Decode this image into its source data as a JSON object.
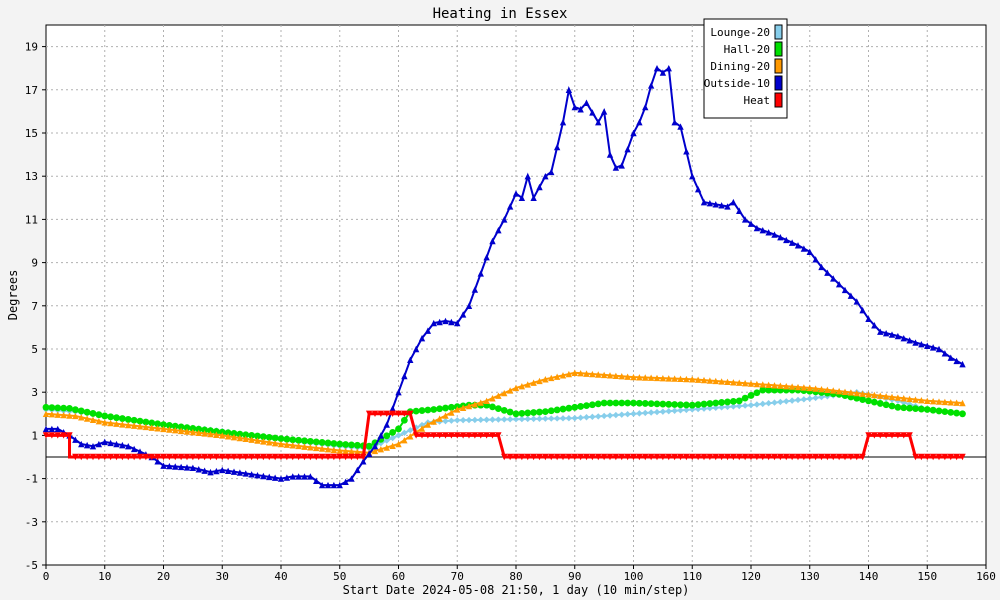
{
  "chart_data": {
    "type": "line",
    "title": "Heating in Essex",
    "xlabel": "Start Date 2024-05-08 21:50, 1 day (10 min/step)",
    "ylabel": "Degrees",
    "xlim": [
      0,
      160
    ],
    "ylim": [
      -5,
      20
    ],
    "xticks": [
      0,
      10,
      20,
      30,
      40,
      50,
      60,
      70,
      80,
      90,
      100,
      110,
      120,
      130,
      140,
      150,
      160
    ],
    "yticks": [
      -5,
      -3,
      -1,
      1,
      3,
      5,
      7,
      9,
      11,
      13,
      15,
      17,
      19
    ],
    "grid": true,
    "legend_position": "top-right",
    "series": [
      {
        "name": "Lounge-20",
        "color": "#87ceeb",
        "marker": "diamond",
        "points": [
          [
            0,
            2.2
          ],
          [
            5,
            2.1
          ],
          [
            10,
            1.9
          ],
          [
            20,
            1.5
          ],
          [
            30,
            1.2
          ],
          [
            40,
            0.8
          ],
          [
            50,
            0.5
          ],
          [
            55,
            0.4
          ],
          [
            60,
            1.0
          ],
          [
            65,
            1.6
          ],
          [
            70,
            1.7
          ],
          [
            80,
            1.75
          ],
          [
            90,
            1.8
          ],
          [
            100,
            2.0
          ],
          [
            110,
            2.2
          ],
          [
            120,
            2.4
          ],
          [
            130,
            2.7
          ],
          [
            138,
            3.0
          ],
          [
            145,
            2.6
          ],
          [
            150,
            2.2
          ],
          [
            156,
            2.0
          ]
        ]
      },
      {
        "name": "Hall-20",
        "color": "#00e000",
        "marker": "circle",
        "points": [
          [
            0,
            2.3
          ],
          [
            4,
            2.25
          ],
          [
            10,
            1.9
          ],
          [
            20,
            1.5
          ],
          [
            30,
            1.15
          ],
          [
            40,
            0.85
          ],
          [
            50,
            0.6
          ],
          [
            55,
            0.5
          ],
          [
            60,
            1.3
          ],
          [
            62,
            2.1
          ],
          [
            66,
            2.2
          ],
          [
            72,
            2.4
          ],
          [
            75,
            2.4
          ],
          [
            80,
            2.0
          ],
          [
            85,
            2.1
          ],
          [
            90,
            2.3
          ],
          [
            95,
            2.5
          ],
          [
            100,
            2.5
          ],
          [
            110,
            2.4
          ],
          [
            118,
            2.6
          ],
          [
            122,
            3.1
          ],
          [
            128,
            3.1
          ],
          [
            135,
            2.9
          ],
          [
            140,
            2.6
          ],
          [
            145,
            2.3
          ],
          [
            150,
            2.2
          ],
          [
            156,
            2.0
          ]
        ]
      },
      {
        "name": "Dining-20",
        "color": "#ff9900",
        "marker": "triangle",
        "points": [
          [
            0,
            2.0
          ],
          [
            5,
            1.9
          ],
          [
            10,
            1.6
          ],
          [
            20,
            1.3
          ],
          [
            30,
            1.0
          ],
          [
            40,
            0.6
          ],
          [
            50,
            0.3
          ],
          [
            55,
            0.2
          ],
          [
            60,
            0.6
          ],
          [
            65,
            1.5
          ],
          [
            70,
            2.2
          ],
          [
            75,
            2.6
          ],
          [
            80,
            3.2
          ],
          [
            85,
            3.6
          ],
          [
            90,
            3.9
          ],
          [
            95,
            3.8
          ],
          [
            100,
            3.7
          ],
          [
            110,
            3.6
          ],
          [
            120,
            3.4
          ],
          [
            130,
            3.2
          ],
          [
            140,
            2.9
          ],
          [
            150,
            2.6
          ],
          [
            156,
            2.5
          ]
        ]
      },
      {
        "name": "Outside-10",
        "color": "#0000cc",
        "marker": "triangle",
        "points": [
          [
            0,
            1.3
          ],
          [
            2,
            1.3
          ],
          [
            4,
            1.0
          ],
          [
            6,
            0.6
          ],
          [
            8,
            0.5
          ],
          [
            10,
            0.7
          ],
          [
            14,
            0.5
          ],
          [
            18,
            0.0
          ],
          [
            20,
            -0.4
          ],
          [
            25,
            -0.5
          ],
          [
            28,
            -0.7
          ],
          [
            30,
            -0.6
          ],
          [
            35,
            -0.8
          ],
          [
            40,
            -1.0
          ],
          [
            42,
            -0.9
          ],
          [
            45,
            -0.9
          ],
          [
            47,
            -1.3
          ],
          [
            50,
            -1.3
          ],
          [
            52,
            -1.0
          ],
          [
            54,
            -0.2
          ],
          [
            56,
            0.5
          ],
          [
            58,
            1.5
          ],
          [
            60,
            3.0
          ],
          [
            62,
            4.5
          ],
          [
            64,
            5.5
          ],
          [
            66,
            6.2
          ],
          [
            68,
            6.3
          ],
          [
            70,
            6.2
          ],
          [
            72,
            7.0
          ],
          [
            74,
            8.5
          ],
          [
            76,
            10.0
          ],
          [
            78,
            11.0
          ],
          [
            80,
            12.2
          ],
          [
            81,
            12.0
          ],
          [
            82,
            13.0
          ],
          [
            83,
            12.0
          ],
          [
            85,
            13.0
          ],
          [
            86,
            13.2
          ],
          [
            88,
            15.5
          ],
          [
            89,
            17.0
          ],
          [
            90,
            16.2
          ],
          [
            91,
            16.1
          ],
          [
            92,
            16.4
          ],
          [
            94,
            15.5
          ],
          [
            95,
            16.0
          ],
          [
            96,
            14.0
          ],
          [
            97,
            13.4
          ],
          [
            98,
            13.5
          ],
          [
            100,
            15.0
          ],
          [
            101,
            15.5
          ],
          [
            102,
            16.2
          ],
          [
            103,
            17.2
          ],
          [
            104,
            18.0
          ],
          [
            105,
            17.8
          ],
          [
            106,
            18.0
          ],
          [
            107,
            15.5
          ],
          [
            108,
            15.3
          ],
          [
            110,
            13.0
          ],
          [
            112,
            11.8
          ],
          [
            114,
            11.7
          ],
          [
            116,
            11.6
          ],
          [
            117,
            11.8
          ],
          [
            119,
            11.0
          ],
          [
            121,
            10.6
          ],
          [
            124,
            10.3
          ],
          [
            128,
            9.8
          ],
          [
            130,
            9.5
          ],
          [
            132,
            8.8
          ],
          [
            135,
            8.0
          ],
          [
            138,
            7.2
          ],
          [
            140,
            6.4
          ],
          [
            142,
            5.8
          ],
          [
            145,
            5.6
          ],
          [
            148,
            5.3
          ],
          [
            152,
            5.0
          ],
          [
            154,
            4.6
          ],
          [
            156,
            4.3
          ]
        ]
      },
      {
        "name": "Heat",
        "color": "#ff0000",
        "marker": "triangle-down",
        "points": [
          [
            0,
            1.0
          ],
          [
            4,
            1.0
          ],
          [
            4,
            0.0
          ],
          [
            54,
            0.0
          ],
          [
            55,
            2.0
          ],
          [
            62,
            2.0
          ],
          [
            63,
            1.0
          ],
          [
            77,
            1.0
          ],
          [
            78,
            0.0
          ],
          [
            139,
            0.0
          ],
          [
            140,
            1.0
          ],
          [
            147,
            1.0
          ],
          [
            148,
            0.0
          ],
          [
            156,
            0.0
          ]
        ]
      }
    ]
  }
}
